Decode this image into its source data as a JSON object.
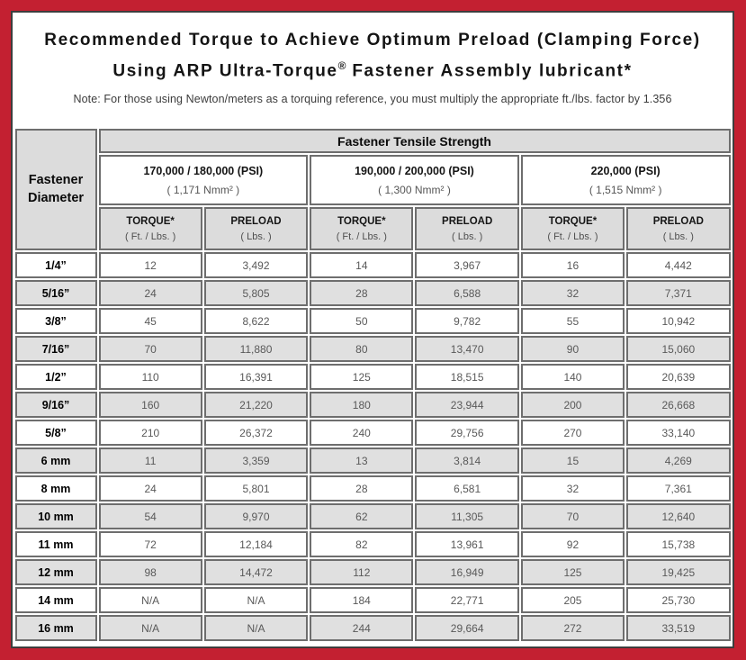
{
  "frame": {
    "border_color": "#c32031",
    "panel_border_color": "#3d3d3d"
  },
  "title": {
    "line1": "Recommended Torque to Achieve Optimum Preload (Clamping Force)",
    "line2_pre": "Using ARP Ultra-Torque",
    "line2_reg": "®",
    "line2_post": " Fastener Assembly lubricant*",
    "note": "Note: For those using Newton/meters as a torquing reference, you must multiply the appropriate ft./lbs. factor by 1.356"
  },
  "table": {
    "corner_header": {
      "line1": "Fastener",
      "line2": "Diameter"
    },
    "tensile_header": "Fastener Tensile Strength",
    "strength_groups": [
      {
        "psi": "170,000 / 180,000 (PSI)",
        "nmm": "( 1,171 Nmm² )"
      },
      {
        "psi": "190,000 / 200,000 (PSI)",
        "nmm": "( 1,300 Nmm² )"
      },
      {
        "psi": "220,000 (PSI)",
        "nmm": "( 1,515 Nmm² )"
      }
    ],
    "sub_headers": {
      "torque_label": "TORQUE*",
      "torque_unit": "( Ft. / Lbs. )",
      "preload_label": "PRELOAD",
      "preload_unit": "( Lbs. )"
    },
    "rows": [
      {
        "diameter": "1/4”",
        "values": [
          "12",
          "3,492",
          "14",
          "3,967",
          "16",
          "4,442"
        ]
      },
      {
        "diameter": "5/16”",
        "values": [
          "24",
          "5,805",
          "28",
          "6,588",
          "32",
          "7,371"
        ]
      },
      {
        "diameter": "3/8”",
        "values": [
          "45",
          "8,622",
          "50",
          "9,782",
          "55",
          "10,942"
        ]
      },
      {
        "diameter": "7/16”",
        "values": [
          "70",
          "11,880",
          "80",
          "13,470",
          "90",
          "15,060"
        ]
      },
      {
        "diameter": "1/2”",
        "values": [
          "110",
          "16,391",
          "125",
          "18,515",
          "140",
          "20,639"
        ]
      },
      {
        "diameter": "9/16”",
        "values": [
          "160",
          "21,220",
          "180",
          "23,944",
          "200",
          "26,668"
        ]
      },
      {
        "diameter": "5/8”",
        "values": [
          "210",
          "26,372",
          "240",
          "29,756",
          "270",
          "33,140"
        ]
      },
      {
        "diameter": "6 mm",
        "values": [
          "11",
          "3,359",
          "13",
          "3,814",
          "15",
          "4,269"
        ]
      },
      {
        "diameter": "8 mm",
        "values": [
          "24",
          "5,801",
          "28",
          "6,581",
          "32",
          "7,361"
        ]
      },
      {
        "diameter": "10 mm",
        "values": [
          "54",
          "9,970",
          "62",
          "11,305",
          "70",
          "12,640"
        ]
      },
      {
        "diameter": "11 mm",
        "values": [
          "72",
          "12,184",
          "82",
          "13,961",
          "92",
          "15,738"
        ]
      },
      {
        "diameter": "12 mm",
        "values": [
          "98",
          "14,472",
          "112",
          "16,949",
          "125",
          "19,425"
        ]
      },
      {
        "diameter": "14 mm",
        "values": [
          "N/A",
          "N/A",
          "184",
          "22,771",
          "205",
          "25,730"
        ]
      },
      {
        "diameter": "16 mm",
        "values": [
          "N/A",
          "N/A",
          "244",
          "29,664",
          "272",
          "33,519"
        ]
      }
    ]
  }
}
